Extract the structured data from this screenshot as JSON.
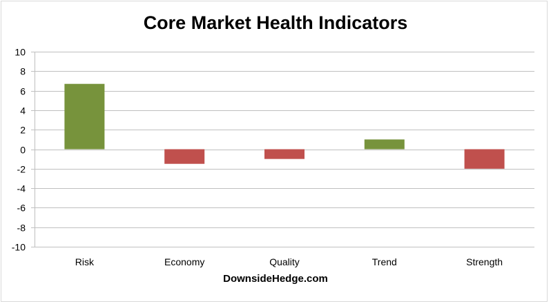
{
  "chart_data": {
    "type": "bar",
    "title": "Core Market Health Indicators",
    "categories": [
      "Risk",
      "Economy",
      "Quality",
      "Trend",
      "Strength"
    ],
    "values": [
      6.7,
      -1.5,
      -1.0,
      1.0,
      -2.0
    ],
    "ylim": [
      -10,
      10
    ],
    "yticks": [
      10,
      8,
      6,
      4,
      2,
      0,
      -2,
      -4,
      -6,
      -8,
      -10
    ],
    "grid": true,
    "legend": "none",
    "colors": {
      "positive": "#77933c",
      "negative": "#c0504d",
      "grid": "#bfbfbf"
    }
  },
  "footer": "DownsideHedge.com"
}
